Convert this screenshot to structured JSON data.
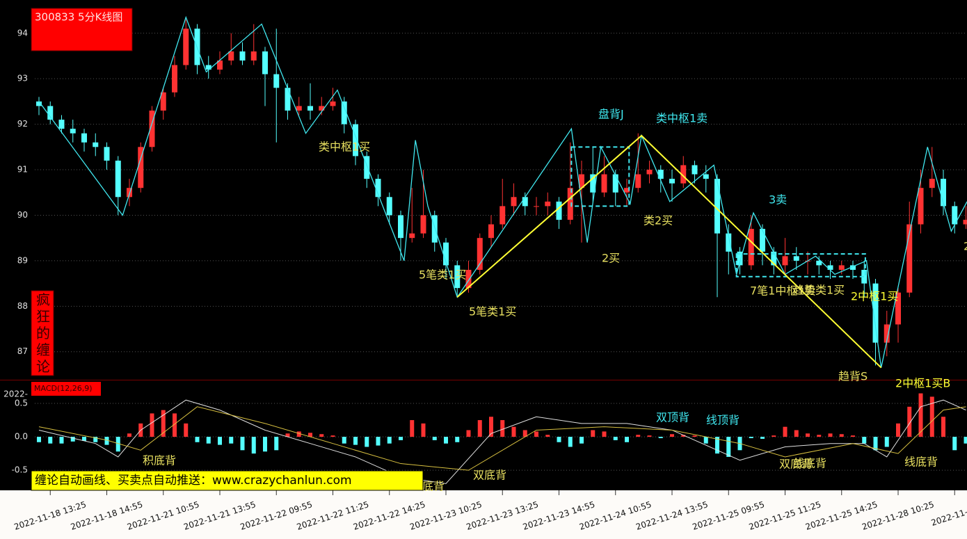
{
  "chart_data": [
    {
      "type": "candlestick",
      "title": "300833 5分K线图",
      "watermark": "疯狂的缠论",
      "up_color": "#ff3232",
      "down_color": "#54ffff",
      "bi_color": "#40e8f0",
      "segment_color": "#ffff33",
      "box_color": "#40e8f0",
      "ylim": [
        86.4,
        94.73
      ],
      "yticks": [
        87,
        88,
        89,
        90,
        91,
        92,
        93,
        94
      ],
      "grid": true,
      "xticks": [
        {
          "value": 1,
          "label": "2022-11-18 13:25"
        },
        {
          "value": 6,
          "label": "2022-11-18 14:55"
        },
        {
          "value": 11,
          "label": "2022-11-21 10:55"
        },
        {
          "value": 16,
          "label": "2022-11-21 13:55"
        },
        {
          "value": 21,
          "label": "2022-11-22 09:55"
        },
        {
          "value": 26,
          "label": "2022-11-22 11:25"
        },
        {
          "value": 31,
          "label": "2022-11-22 14:25"
        },
        {
          "value": 36,
          "label": "2022-11-23 10:25"
        },
        {
          "value": 41,
          "label": "2022-11-23 13:25"
        },
        {
          "value": 46,
          "label": "2022-11-23 14:55"
        },
        {
          "value": 51,
          "label": "2022-11-24 10:55"
        },
        {
          "value": 56,
          "label": "2022-11-24 13:55"
        },
        {
          "value": 61,
          "label": "2022-11-25 09:55"
        },
        {
          "value": 66,
          "label": "2022-11-25 11:25"
        },
        {
          "value": 71,
          "label": "2022-11-25 14:25"
        },
        {
          "value": 76,
          "label": "2022-11-28 10:25"
        },
        {
          "value": 81,
          "label": "2022-11-28"
        }
      ],
      "open": [
        92.5,
        92.4,
        92.1,
        91.9,
        91.8,
        91.6,
        91.5,
        91.2,
        90.4,
        90.6,
        91.5,
        92.3,
        92.7,
        93.3,
        94.1,
        93.3,
        93.2,
        93.4,
        93.6,
        93.4,
        93.6,
        93.1,
        92.8,
        92.3,
        92.4,
        92.3,
        92.4,
        92.5,
        92.0,
        91.3,
        90.8,
        90.4,
        90.0,
        89.5,
        89.6,
        90.0,
        89.4,
        88.9,
        88.4,
        88.8,
        89.5,
        89.8,
        90.2,
        90.4,
        90.2,
        90.2,
        90.3,
        89.9,
        90.6,
        90.9,
        90.5,
        90.9,
        90.5,
        90.6,
        90.9,
        91.0,
        90.8,
        90.7,
        91.1,
        90.9,
        90.8,
        89.6,
        89.2,
        88.9,
        89.7,
        89.2,
        88.9,
        89.1,
        89.0,
        89.0,
        88.9,
        88.8,
        88.9,
        88.8,
        88.5,
        87.2,
        87.6,
        88.3,
        89.8,
        90.6,
        90.8,
        90.2,
        89.8
      ],
      "high": [
        92.6,
        92.5,
        92.2,
        92.1,
        91.9,
        91.8,
        91.6,
        91.3,
        90.8,
        91.6,
        92.4,
        92.8,
        93.5,
        94.3,
        94.2,
        93.5,
        93.6,
        94.0,
        93.8,
        94.2,
        93.7,
        94.1,
        92.9,
        92.6,
        92.9,
        92.6,
        92.8,
        92.6,
        92.1,
        91.4,
        90.9,
        90.5,
        90.1,
        90.6,
        91.0,
        90.1,
        89.5,
        89.0,
        89.0,
        89.6,
        90.0,
        90.8,
        90.7,
        90.5,
        90.4,
        90.5,
        90.4,
        91.6,
        91.2,
        91.5,
        91.3,
        91.0,
        90.8,
        91.8,
        91.2,
        91.1,
        91.0,
        91.3,
        91.2,
        91.1,
        90.9,
        89.8,
        89.3,
        90.0,
        89.8,
        89.3,
        89.5,
        89.3,
        89.2,
        89.1,
        89.0,
        89.0,
        89.0,
        89.0,
        88.6,
        87.9,
        88.4,
        90.3,
        91.0,
        91.5,
        91.0,
        90.3,
        90.2
      ],
      "low": [
        92.2,
        92.0,
        91.8,
        91.6,
        91.4,
        91.3,
        91.0,
        90.0,
        90.2,
        90.5,
        91.4,
        92.1,
        92.6,
        93.2,
        93.1,
        93.0,
        93.1,
        93.3,
        93.3,
        93.3,
        92.4,
        91.6,
        92.1,
        92.2,
        92.1,
        92.2,
        92.3,
        91.8,
        91.1,
        90.6,
        90.2,
        89.8,
        89.0,
        89.4,
        89.5,
        89.2,
        88.6,
        88.2,
        88.3,
        88.7,
        89.3,
        89.7,
        90.0,
        90.0,
        90.0,
        90.0,
        89.7,
        89.8,
        89.4,
        90.3,
        90.4,
        90.2,
        90.2,
        90.5,
        90.7,
        90.5,
        90.3,
        90.6,
        90.7,
        90.5,
        88.2,
        88.7,
        88.7,
        88.8,
        88.9,
        88.7,
        88.7,
        88.8,
        88.7,
        88.7,
        88.6,
        88.7,
        88.6,
        88.2,
        86.7,
        86.9,
        87.2,
        88.2,
        89.6,
        90.4,
        90.0,
        89.6,
        89.7
      ],
      "close": [
        92.4,
        92.1,
        91.9,
        91.8,
        91.6,
        91.5,
        91.2,
        90.4,
        90.6,
        91.5,
        92.3,
        92.7,
        93.3,
        94.1,
        93.3,
        93.2,
        93.4,
        93.6,
        93.4,
        93.6,
        93.1,
        92.8,
        92.3,
        92.4,
        92.3,
        92.4,
        92.5,
        92.0,
        91.3,
        90.8,
        90.4,
        90.0,
        89.5,
        89.6,
        90.0,
        89.4,
        88.9,
        88.4,
        88.8,
        89.5,
        89.8,
        90.2,
        90.4,
        90.2,
        90.2,
        90.3,
        89.9,
        90.6,
        90.9,
        90.5,
        90.9,
        90.5,
        90.6,
        90.9,
        91.0,
        90.8,
        90.7,
        91.1,
        90.9,
        90.8,
        89.6,
        89.2,
        88.9,
        89.7,
        89.2,
        88.9,
        89.1,
        89.0,
        89.0,
        88.9,
        88.8,
        88.9,
        88.8,
        88.5,
        87.2,
        87.6,
        88.3,
        89.8,
        90.6,
        90.8,
        90.2,
        89.8,
        89.9
      ],
      "bi": {
        "x": [
          0,
          7.4,
          13,
          14.8,
          19.7,
          23.6,
          26.4,
          32.3,
          33.3,
          34.4,
          37,
          47.1,
          48.5,
          49.7,
          52.3,
          53.3,
          55.8,
          59.7,
          61.7,
          63.2,
          66,
          68.7,
          70.4,
          73.2,
          74.5,
          78.6,
          80.7,
          82.1
        ],
        "values": [
          92.5,
          90.0,
          94.35,
          93.15,
          94.2,
          91.8,
          92.75,
          89.0,
          91.65,
          90.2,
          88.2,
          91.9,
          89.4,
          91.5,
          90.25,
          91.75,
          90.3,
          91.1,
          88.7,
          90.05,
          88.7,
          89.1,
          88.7,
          89.0,
          86.65,
          91.5,
          89.65,
          90.3
        ]
      },
      "segment": {
        "x": [
          37,
          53.3,
          74.5
        ],
        "values": [
          88.2,
          91.75,
          86.65
        ]
      },
      "zhongshu": [
        {
          "x": [
            47.1,
            52.2
          ],
          "y": [
            91.5,
            90.2
          ]
        },
        {
          "x": [
            61.7,
            73.1
          ],
          "y": [
            89.15,
            88.65
          ]
        }
      ],
      "annotations": [
        {
          "text": "类中枢1买",
          "color": "#e8e060"
        },
        {
          "text": "5笔类1买",
          "color": "#e8e060"
        },
        {
          "text": "5笔类1买",
          "color": "#e8e060"
        },
        {
          "text": "盘背J",
          "color": "#40e8f0"
        },
        {
          "text": "类中枢1卖",
          "color": "#40e8f0"
        },
        {
          "text": "类2买",
          "color": "#e8e060"
        },
        {
          "text": "2买",
          "color": "#e8e060"
        },
        {
          "text": "3卖",
          "color": "#40e8f0"
        },
        {
          "text": "7笔1中枢1卖",
          "color": "#e8e060"
        },
        {
          "text": "趋势类1买",
          "color": "#e8e060"
        },
        {
          "text": "2中枢1买",
          "color": "#ffff33"
        },
        {
          "text": "趋背S",
          "color": "#e8e060"
        },
        {
          "text": "2中枢1买B",
          "color": "#ffff33"
        },
        {
          "text": "2",
          "color": "#e8e060"
        }
      ]
    },
    {
      "type": "macd",
      "title": "MACD(12,26,9)",
      "ylabel": "2022-",
      "up_color": "#ff3232",
      "down_color": "#54ffff",
      "ylim": [
        -0.8,
        0.833
      ],
      "yticks": [
        -0.5,
        {
          "value": 0,
          "label": "0.0"
        },
        0.5
      ],
      "values": [
        -0.08,
        -0.1,
        -0.1,
        -0.07,
        -0.06,
        -0.08,
        -0.12,
        -0.22,
        0.05,
        0.2,
        0.35,
        0.4,
        0.35,
        0.2,
        -0.08,
        -0.1,
        -0.12,
        -0.1,
        -0.2,
        -0.25,
        -0.22,
        -0.2,
        0.05,
        0.08,
        0.06,
        0.04,
        0.02,
        -0.1,
        -0.12,
        -0.15,
        -0.13,
        -0.1,
        -0.05,
        0.25,
        0.2,
        -0.05,
        -0.1,
        -0.08,
        0.1,
        0.25,
        0.3,
        0.25,
        0.15,
        0.1,
        0.08,
        0.03,
        -0.08,
        -0.15,
        -0.1,
        0.1,
        0.08,
        -0.05,
        -0.08,
        0.03,
        0.02,
        -0.02,
        0.04,
        0.03,
        0.02,
        -0.1,
        -0.25,
        -0.3,
        -0.2,
        -0.02,
        -0.03,
        0.02,
        0.15,
        0.1,
        0.05,
        0.03,
        0.05,
        0.04,
        0.02,
        -0.1,
        -0.2,
        -0.15,
        0.2,
        0.45,
        0.65,
        0.6,
        0.3,
        -0.2,
        -0.1
      ],
      "series": [
        {
          "name": "DIF",
          "color": "#e0e0e0",
          "x": [
            0,
            5,
            7,
            9,
            13,
            16,
            20,
            24,
            28,
            32,
            36,
            40,
            44,
            48,
            52,
            56,
            60,
            62,
            66,
            70,
            73,
            75,
            78,
            80,
            82
          ],
          "values": [
            0.1,
            -0.1,
            -0.3,
            0.1,
            0.55,
            0.4,
            0.1,
            -0.1,
            -0.3,
            -0.6,
            -0.7,
            0.05,
            0.3,
            0.2,
            0.2,
            0.1,
            -0.2,
            -0.35,
            -0.15,
            -0.1,
            -0.1,
            -0.3,
            0.45,
            0.55,
            0.4
          ]
        },
        {
          "name": "DEA",
          "color": "#d8c040",
          "x": [
            0,
            6,
            9,
            14,
            20,
            26,
            32,
            38,
            44,
            50,
            56,
            62,
            66,
            72,
            76,
            80,
            82
          ],
          "values": [
            0.15,
            -0.05,
            -0.2,
            0.45,
            0.2,
            -0.1,
            -0.4,
            -0.5,
            0.1,
            0.15,
            0.1,
            -0.1,
            -0.3,
            -0.1,
            -0.25,
            0.4,
            0.45
          ]
        }
      ],
      "annotations": [
        {
          "text": "积底背",
          "color": "#e8e060"
        },
        {
          "text": "底背",
          "color": "#e8e060"
        },
        {
          "text": "双底背",
          "color": "#e8e060"
        },
        {
          "text": "双顶背",
          "color": "#40e8f0"
        },
        {
          "text": "线顶背",
          "color": "#40e8f0"
        },
        {
          "text": "双底背",
          "color": "#e8e060"
        },
        {
          "text": "线底背",
          "color": "#e8e060"
        },
        {
          "text": "线底背",
          "color": "#e8e060"
        }
      ]
    }
  ],
  "banner": "缠论自动画线、买卖点自动推送：www.crazychanlun.com"
}
